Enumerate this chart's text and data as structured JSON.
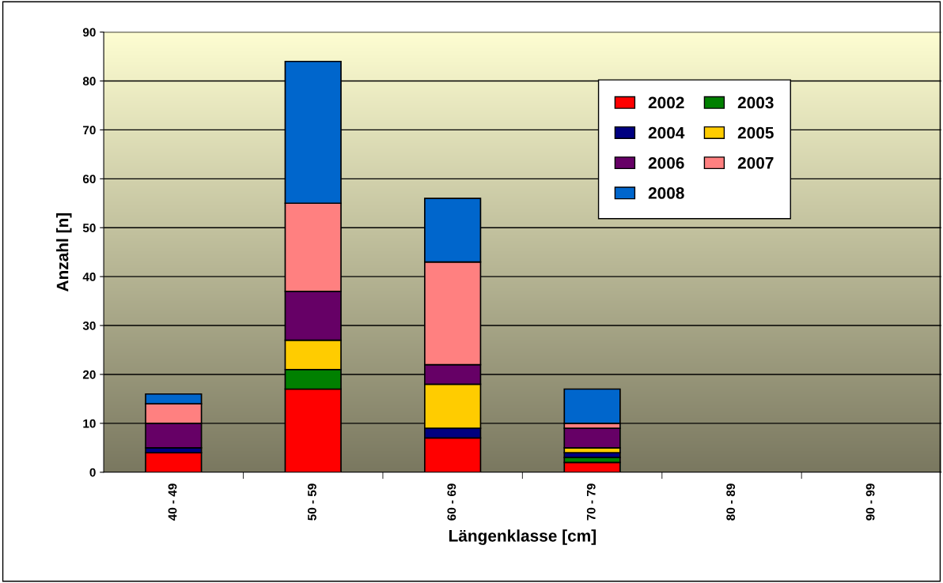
{
  "chart_data": {
    "type": "bar",
    "stacked": true,
    "xlabel": "Längenklasse [cm]",
    "ylabel": "Anzahl [n]",
    "categories": [
      "40 - 49",
      "50 - 59",
      "60 - 69",
      "70 - 79",
      "80 - 89",
      "90 - 99"
    ],
    "series": [
      {
        "name": "2002",
        "color": "#ff0000",
        "values": [
          4,
          17,
          7,
          2,
          0,
          0
        ]
      },
      {
        "name": "2003",
        "color": "#008000",
        "values": [
          0,
          4,
          0,
          1,
          0,
          0
        ]
      },
      {
        "name": "2004",
        "color": "#000080",
        "values": [
          1,
          0,
          2,
          1,
          0,
          0
        ]
      },
      {
        "name": "2005",
        "color": "#ffcc00",
        "values": [
          0,
          6,
          9,
          1,
          0,
          0
        ]
      },
      {
        "name": "2006",
        "color": "#660066",
        "values": [
          5,
          10,
          4,
          4,
          0,
          0
        ]
      },
      {
        "name": "2007",
        "color": "#ff8080",
        "values": [
          4,
          18,
          21,
          1,
          0,
          0
        ]
      },
      {
        "name": "2008",
        "color": "#0066cc",
        "values": [
          2,
          29,
          13,
          7,
          0,
          0
        ]
      }
    ],
    "ylim": [
      0,
      90
    ],
    "yticks": [
      0,
      10,
      20,
      30,
      40,
      50,
      60,
      70,
      80,
      90
    ],
    "grid": "y",
    "legend": "top right"
  }
}
